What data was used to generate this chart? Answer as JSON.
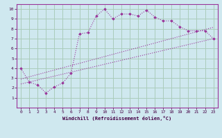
{
  "bg_color": "#cfe8ef",
  "grid_color": "#aaccbb",
  "line_color": "#993399",
  "xlabel": "Windchill (Refroidissement éolien,°C)",
  "xlim": [
    -0.5,
    23.5
  ],
  "ylim": [
    0,
    10.5
  ],
  "xticks": [
    0,
    1,
    2,
    3,
    4,
    5,
    6,
    7,
    8,
    9,
    10,
    11,
    12,
    13,
    14,
    15,
    16,
    17,
    18,
    19,
    20,
    21,
    22,
    23
  ],
  "yticks": [
    1,
    2,
    3,
    4,
    5,
    6,
    7,
    8,
    9,
    10
  ],
  "line1_x": [
    0,
    1,
    2,
    3,
    4,
    5,
    6,
    7,
    8,
    9,
    10,
    11,
    12,
    13,
    14,
    15,
    16,
    17,
    18,
    19,
    20,
    21,
    22,
    23
  ],
  "line1_y": [
    4.0,
    2.6,
    2.3,
    1.5,
    2.1,
    2.5,
    3.5,
    7.5,
    7.6,
    9.3,
    10.0,
    9.0,
    9.5,
    9.5,
    9.3,
    9.9,
    9.2,
    8.8,
    8.8,
    8.2,
    7.8,
    7.8,
    7.8,
    7.0
  ],
  "line2_x": [
    0,
    23
  ],
  "line2_y": [
    2.9,
    8.15
  ],
  "line3_x": [
    0,
    23
  ],
  "line3_y": [
    2.4,
    7.0
  ]
}
